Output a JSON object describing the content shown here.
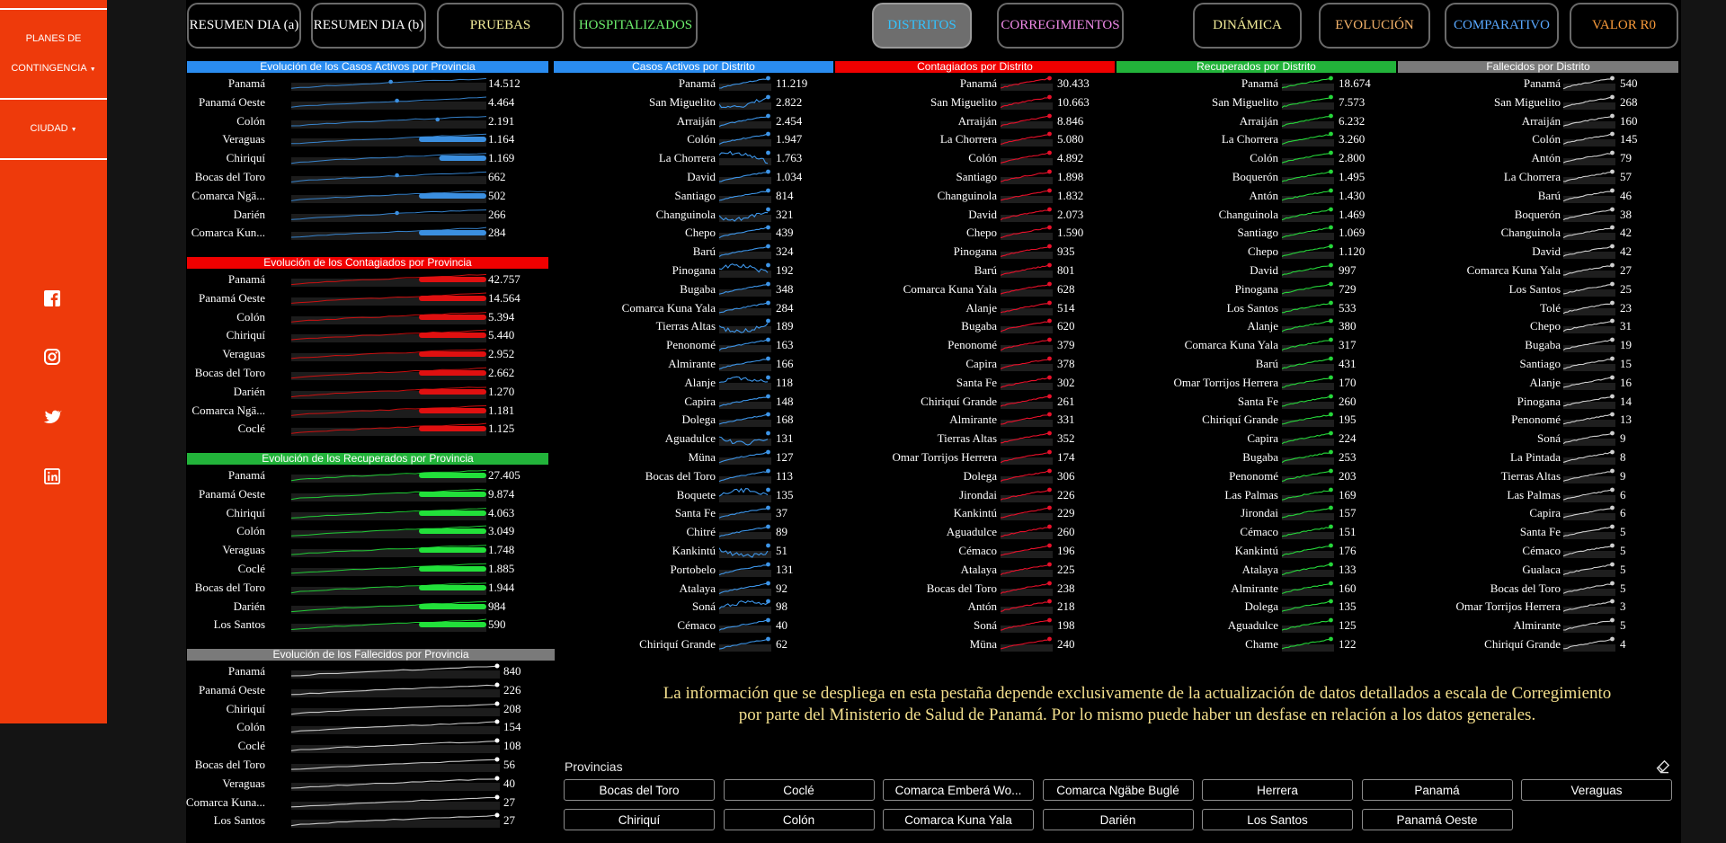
{
  "sidebar": {
    "menu_planes_line1": "PLANES DE",
    "menu_planes_line2": "CONTINGENCIA",
    "menu_ciudad": "CIUDAD"
  },
  "nav": [
    {
      "label": "RESUMEN DIA (a)",
      "color": "#ffffff"
    },
    {
      "label": "RESUMEN DIA (b)",
      "color": "#ffffff"
    },
    {
      "label": "PRUEBAS",
      "color": "#f4ee9a"
    },
    {
      "label": "HOSPITALIZADOS",
      "color": "#6ef06e"
    },
    {
      "label": "DISTRITOS",
      "color": "#33c3ff",
      "active": true
    },
    {
      "label": "CORREGIMIENTOS",
      "color": "#f08ae8"
    },
    {
      "label": "DINÁMICA",
      "color": "#f4ee9a"
    },
    {
      "label": "EVOLUCIÓN",
      "color": "#f6b46b"
    },
    {
      "label": "COMPARATIVO",
      "color": "#59a8ff"
    },
    {
      "label": "VALOR R0",
      "color": "#f89a3a"
    }
  ],
  "province_panels": [
    {
      "title": "Evolución de los Casos Activos por Provincia",
      "header_color": "#2a8cf0",
      "line_color": "#3b8fe0",
      "style": "bar",
      "rows": [
        {
          "name": "Panamá",
          "value": "14.512",
          "level": 0.1
        },
        {
          "name": "Panamá Oeste",
          "value": "4.464",
          "level": 0.12
        },
        {
          "name": "Colón",
          "value": "2.191",
          "level": 0.25
        },
        {
          "name": "Veraguas",
          "value": "1.164",
          "level": 1.0
        },
        {
          "name": "Chiriquí",
          "value": "1.169",
          "level": 0.7
        },
        {
          "name": "Bocas del Toro",
          "value": "662",
          "level": 0.12
        },
        {
          "name": "Comarca Ngä...",
          "value": "502",
          "level": 1.0
        },
        {
          "name": "Darién",
          "value": "266",
          "level": 0.12
        },
        {
          "name": "Comarca Kun...",
          "value": "284",
          "level": 1.0
        }
      ]
    },
    {
      "title": "Evolución de los Contagiados por Provincia",
      "header_color": "#f00000",
      "line_color": "#e01010",
      "style": "bar",
      "rows": [
        {
          "name": "Panamá",
          "value": "42.757",
          "level": 1.0
        },
        {
          "name": "Panamá Oeste",
          "value": "14.564",
          "level": 1.0
        },
        {
          "name": "Colón",
          "value": "5.394",
          "level": 1.0
        },
        {
          "name": "Chiriquí",
          "value": "5.440",
          "level": 1.0
        },
        {
          "name": "Veraguas",
          "value": "2.952",
          "level": 1.0
        },
        {
          "name": "Bocas del Toro",
          "value": "2.662",
          "level": 1.0
        },
        {
          "name": "Darién",
          "value": "1.270",
          "level": 1.0
        },
        {
          "name": "Comarca Ngä...",
          "value": "1.181",
          "level": 1.0
        },
        {
          "name": "Coclé",
          "value": "1.125",
          "level": 1.0
        }
      ]
    },
    {
      "title": "Evolución de los Recuperados por Provincia",
      "header_color": "#22b33a",
      "line_color": "#22e03a",
      "style": "bar",
      "rows": [
        {
          "name": "Panamá",
          "value": "27.405",
          "level": 1.0
        },
        {
          "name": "Panamá Oeste",
          "value": "9.874",
          "level": 1.0
        },
        {
          "name": "Chiriquí",
          "value": "4.063",
          "level": 1.0
        },
        {
          "name": "Colón",
          "value": "3.049",
          "level": 1.0
        },
        {
          "name": "Veraguas",
          "value": "1.748",
          "level": 1.0
        },
        {
          "name": "Coclé",
          "value": "1.885",
          "level": 1.0
        },
        {
          "name": "Bocas del Toro",
          "value": "1.944",
          "level": 1.0
        },
        {
          "name": "Darién",
          "value": "984",
          "level": 1.0
        },
        {
          "name": "Los Santos",
          "value": "590",
          "level": 1.0
        }
      ]
    },
    {
      "title": "Evolución de los Fallecidos por Provincia",
      "header_color": "#7a7a7a",
      "line_color": "#c8c8c8",
      "style": "dot",
      "rows": [
        {
          "name": "Panamá",
          "value": "840"
        },
        {
          "name": "Panamá Oeste",
          "value": "226"
        },
        {
          "name": "Chiriquí",
          "value": "208"
        },
        {
          "name": "Colón",
          "value": "154"
        },
        {
          "name": "Coclé",
          "value": "108"
        },
        {
          "name": "Bocas del Toro",
          "value": "56"
        },
        {
          "name": "Veraguas",
          "value": "40"
        },
        {
          "name": "Comarca Kuna...",
          "value": "27"
        },
        {
          "name": "Los Santos",
          "value": "27"
        }
      ]
    }
  ],
  "district_columns": [
    {
      "title": "Casos Activos por Distrito",
      "header_color": "#2a8cf0",
      "line_color": "#3d95e8",
      "rows": [
        {
          "name": "Panamá",
          "value": "11.219"
        },
        {
          "name": "San Miguelito",
          "value": "2.822"
        },
        {
          "name": "Arraiján",
          "value": "2.454"
        },
        {
          "name": "Colón",
          "value": "1.947"
        },
        {
          "name": "La Chorrera",
          "value": "1.763"
        },
        {
          "name": "David",
          "value": "1.034"
        },
        {
          "name": "Santiago",
          "value": "814"
        },
        {
          "name": "Changuinola",
          "value": "321"
        },
        {
          "name": "Chepo",
          "value": "439"
        },
        {
          "name": "Barú",
          "value": "324"
        },
        {
          "name": "Pinogana",
          "value": "192"
        },
        {
          "name": "Bugaba",
          "value": "348"
        },
        {
          "name": "Comarca Kuna Yala",
          "value": "284"
        },
        {
          "name": "Tierras Altas",
          "value": "189"
        },
        {
          "name": "Penonomé",
          "value": "163"
        },
        {
          "name": "Almirante",
          "value": "166"
        },
        {
          "name": "Alanje",
          "value": "118"
        },
        {
          "name": "Capira",
          "value": "148"
        },
        {
          "name": "Dolega",
          "value": "168"
        },
        {
          "name": "Aguadulce",
          "value": "131"
        },
        {
          "name": "Müna",
          "value": "127"
        },
        {
          "name": "Bocas del Toro",
          "value": "113"
        },
        {
          "name": "Boquete",
          "value": "135"
        },
        {
          "name": "Santa Fe",
          "value": "37"
        },
        {
          "name": "Chitré",
          "value": "89"
        },
        {
          "name": "Kankintú",
          "value": "51"
        },
        {
          "name": "Portobelo",
          "value": "131"
        },
        {
          "name": "Atalaya",
          "value": "92"
        },
        {
          "name": "Soná",
          "value": "98"
        },
        {
          "name": "Cémaco",
          "value": "40"
        },
        {
          "name": "Chiriquí Grande",
          "value": "62"
        }
      ]
    },
    {
      "title": "Contagiados por Distrito",
      "header_color": "#f00000",
      "line_color": "#e8102a",
      "rows": [
        {
          "name": "Panamá",
          "value": "30.433"
        },
        {
          "name": "San Miguelito",
          "value": "10.663"
        },
        {
          "name": "Arraiján",
          "value": "8.846"
        },
        {
          "name": "La Chorrera",
          "value": "5.080"
        },
        {
          "name": "Colón",
          "value": "4.892"
        },
        {
          "name": "Santiago",
          "value": "1.898"
        },
        {
          "name": "Changuinola",
          "value": "1.832"
        },
        {
          "name": "David",
          "value": "2.073"
        },
        {
          "name": "Chepo",
          "value": "1.590"
        },
        {
          "name": "Pinogana",
          "value": "935"
        },
        {
          "name": "Barú",
          "value": "801"
        },
        {
          "name": "Comarca Kuna Yala",
          "value": "628"
        },
        {
          "name": "Alanje",
          "value": "514"
        },
        {
          "name": "Bugaba",
          "value": "620"
        },
        {
          "name": "Penonomé",
          "value": "379"
        },
        {
          "name": "Capira",
          "value": "378"
        },
        {
          "name": "Santa Fe",
          "value": "302"
        },
        {
          "name": "Chiriquí Grande",
          "value": "261"
        },
        {
          "name": "Almirante",
          "value": "331"
        },
        {
          "name": "Tierras Altas",
          "value": "352"
        },
        {
          "name": "Omar Torrijos Herrera",
          "value": "174"
        },
        {
          "name": "Dolega",
          "value": "306"
        },
        {
          "name": "Jirondai",
          "value": "226"
        },
        {
          "name": "Kankintú",
          "value": "229"
        },
        {
          "name": "Aguadulce",
          "value": "260"
        },
        {
          "name": "Cémaco",
          "value": "196"
        },
        {
          "name": "Atalaya",
          "value": "225"
        },
        {
          "name": "Bocas del Toro",
          "value": "238"
        },
        {
          "name": "Antón",
          "value": "218"
        },
        {
          "name": "Soná",
          "value": "198"
        },
        {
          "name": "Müna",
          "value": "240"
        }
      ]
    },
    {
      "title": "Recuperados por Distrito",
      "header_color": "#22b33a",
      "line_color": "#26d63a",
      "rows": [
        {
          "name": "Panamá",
          "value": "18.674"
        },
        {
          "name": "San Miguelito",
          "value": "7.573"
        },
        {
          "name": "Arraiján",
          "value": "6.232"
        },
        {
          "name": "La Chorrera",
          "value": "3.260"
        },
        {
          "name": "Colón",
          "value": "2.800"
        },
        {
          "name": "Boquerón",
          "value": "1.495"
        },
        {
          "name": "Antón",
          "value": "1.430"
        },
        {
          "name": "Changuinola",
          "value": "1.469"
        },
        {
          "name": "Santiago",
          "value": "1.069"
        },
        {
          "name": "Chepo",
          "value": "1.120"
        },
        {
          "name": "David",
          "value": "997"
        },
        {
          "name": "Pinogana",
          "value": "729"
        },
        {
          "name": "Los Santos",
          "value": "533"
        },
        {
          "name": "Alanje",
          "value": "380"
        },
        {
          "name": "Comarca Kuna Yala",
          "value": "317"
        },
        {
          "name": "Barú",
          "value": "431"
        },
        {
          "name": "Omar Torrijos Herrera",
          "value": "170"
        },
        {
          "name": "Santa Fe",
          "value": "260"
        },
        {
          "name": "Chiriquí Grande",
          "value": "195"
        },
        {
          "name": "Capira",
          "value": "224"
        },
        {
          "name": "Bugaba",
          "value": "253"
        },
        {
          "name": "Penonomé",
          "value": "203"
        },
        {
          "name": "Las Palmas",
          "value": "169"
        },
        {
          "name": "Jirondai",
          "value": "157"
        },
        {
          "name": "Cémaco",
          "value": "151"
        },
        {
          "name": "Kankintú",
          "value": "176"
        },
        {
          "name": "Atalaya",
          "value": "133"
        },
        {
          "name": "Almirante",
          "value": "160"
        },
        {
          "name": "Dolega",
          "value": "135"
        },
        {
          "name": "Aguadulce",
          "value": "125"
        },
        {
          "name": "Chame",
          "value": "122"
        }
      ]
    },
    {
      "title": "Fallecidos por Distrito",
      "header_color": "#7a7a7a",
      "line_color": "#cfcfcf",
      "rows": [
        {
          "name": "Panamá",
          "value": "540"
        },
        {
          "name": "San Miguelito",
          "value": "268"
        },
        {
          "name": "Arraiján",
          "value": "160"
        },
        {
          "name": "Colón",
          "value": "145"
        },
        {
          "name": "Antón",
          "value": "79"
        },
        {
          "name": "La Chorrera",
          "value": "57"
        },
        {
          "name": "Barú",
          "value": "46"
        },
        {
          "name": "Boquerón",
          "value": "38"
        },
        {
          "name": "Changuinola",
          "value": "42"
        },
        {
          "name": "David",
          "value": "42"
        },
        {
          "name": "Comarca Kuna Yala",
          "value": "27"
        },
        {
          "name": "Los Santos",
          "value": "25"
        },
        {
          "name": "Tolé",
          "value": "23"
        },
        {
          "name": "Chepo",
          "value": "31"
        },
        {
          "name": "Bugaba",
          "value": "19"
        },
        {
          "name": "Santiago",
          "value": "15"
        },
        {
          "name": "Alanje",
          "value": "16"
        },
        {
          "name": "Pinogana",
          "value": "14"
        },
        {
          "name": "Penonomé",
          "value": "13"
        },
        {
          "name": "Soná",
          "value": "9"
        },
        {
          "name": "La Pintada",
          "value": "8"
        },
        {
          "name": "Tierras Altas",
          "value": "9"
        },
        {
          "name": "Las Palmas",
          "value": "6"
        },
        {
          "name": "Capira",
          "value": "6"
        },
        {
          "name": "Santa Fe",
          "value": "5"
        },
        {
          "name": "Cémaco",
          "value": "5"
        },
        {
          "name": "Gualaca",
          "value": "5"
        },
        {
          "name": "Bocas del Toro",
          "value": "5"
        },
        {
          "name": "Omar Torrijos Herrera",
          "value": "3"
        },
        {
          "name": "Almirante",
          "value": "5"
        },
        {
          "name": "Chiriquí Grande",
          "value": "4"
        }
      ]
    }
  ],
  "notice": {
    "line1": "La información que se despliega en esta pestaña depende exclusivamente de la actualización de datos detallados a escala de Corregimiento",
    "line2": "por parte del Ministerio de Salud de Panamá. Por lo mismo puede haber un desfase en relación a los datos generales."
  },
  "filter": {
    "label": "Provincias",
    "options": [
      "Bocas del Toro",
      "Coclé",
      "Comarca Emberá Wo...",
      "Comarca Ngäbe Buglé",
      "Herrera",
      "Panamá",
      "Veraguas",
      "Chiriquí",
      "Colón",
      "Comarca Kuna Yala",
      "Darién",
      "Los Santos",
      "Panamá Oeste"
    ]
  },
  "icons": {
    "facebook": "facebook-icon",
    "instagram": "instagram-icon",
    "twitter": "twitter-icon",
    "linkedin": "linkedin-icon",
    "eraser": "eraser-icon",
    "caret": "caret-down-icon"
  }
}
